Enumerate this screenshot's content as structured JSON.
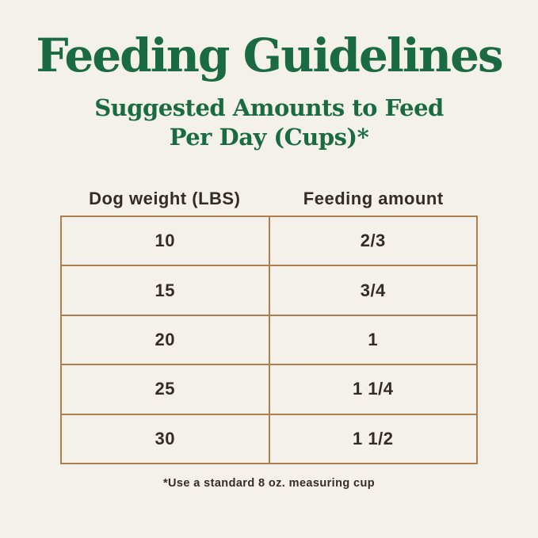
{
  "page": {
    "title": "Feeding Guidelines",
    "subtitle_line1": "Suggested Amounts to Feed",
    "subtitle_line2": "Per Day (Cups)*",
    "footnote": "*Use a standard 8 oz. measuring cup"
  },
  "colors": {
    "title_green": "#1a6a43",
    "text_dark": "#352b26",
    "table_border": "#ae7e4e",
    "background": "#f3f1ea"
  },
  "table": {
    "headers": [
      "Dog weight (LBS)",
      "Feeding amount"
    ],
    "rows": [
      {
        "weight": "10",
        "amount": "2/3"
      },
      {
        "weight": "15",
        "amount": "3/4"
      },
      {
        "weight": "20",
        "amount": "1"
      },
      {
        "weight": "25",
        "amount": "1 1/4"
      },
      {
        "weight": "30",
        "amount": "1 1/2"
      }
    ]
  },
  "chart_data": {
    "type": "table",
    "title": "Feeding Guidelines",
    "subtitle": "Suggested Amounts to Feed Per Day (Cups)*",
    "columns": [
      "Dog weight (LBS)",
      "Feeding amount"
    ],
    "rows": [
      [
        "10",
        "2/3"
      ],
      [
        "15",
        "3/4"
      ],
      [
        "20",
        "1"
      ],
      [
        "25",
        "1 1/4"
      ],
      [
        "30",
        "1 1/2"
      ]
    ],
    "units": "cups per day",
    "footnote": "*Use a standard 8 oz. measuring cup"
  }
}
